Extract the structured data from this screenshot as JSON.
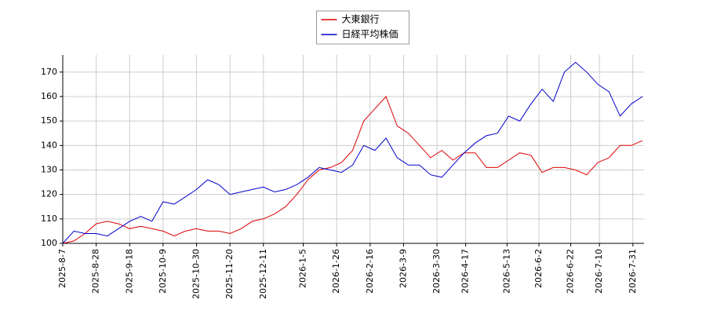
{
  "chart_data": {
    "type": "line",
    "x": [
      "2025-8-7",
      "2025-8-14",
      "2025-8-21",
      "2025-8-28",
      "2025-9-4",
      "2025-9-11",
      "2025-9-18",
      "2025-9-25",
      "2025-10-2",
      "2025-10-9",
      "2025-10-16",
      "2025-10-23",
      "2025-10-30",
      "2025-11-6",
      "2025-11-13",
      "2025-11-20",
      "2025-11-27",
      "2025-12-4",
      "2025-12-11",
      "2025-12-18",
      "2025-12-25",
      "2026-1-1",
      "2026-1-8",
      "2026-1-15",
      "2026-1-22",
      "2026-1-29",
      "2026-2-5",
      "2026-2-12",
      "2026-2-19",
      "2026-2-26",
      "2026-3-5",
      "2026-3-12",
      "2026-3-19",
      "2026-3-26",
      "2026-4-2",
      "2026-4-9",
      "2026-4-16",
      "2026-4-23",
      "2026-4-30",
      "2026-5-7",
      "2026-5-14",
      "2026-5-21",
      "2026-5-28",
      "2026-6-4",
      "2026-6-11",
      "2026-6-18",
      "2026-6-25",
      "2026-7-2",
      "2026-7-9",
      "2026-7-16",
      "2026-7-23",
      "2026-7-30",
      "2026-8-6"
    ],
    "series": [
      {
        "name": "大東銀行",
        "color": "#dd0000",
        "values": [
          100,
          101,
          104,
          108,
          109,
          108,
          106,
          107,
          106,
          105,
          103,
          105,
          106,
          105,
          105,
          104,
          106,
          109,
          110,
          112,
          115,
          120,
          126,
          130,
          131,
          133,
          138,
          150,
          155,
          160,
          148,
          145,
          140,
          135,
          138,
          134,
          137,
          137,
          131,
          131,
          134,
          137,
          136,
          129,
          131,
          131,
          130,
          128,
          133,
          135,
          140,
          140,
          142
        ]
      },
      {
        "name": "日経平均株価",
        "color": "#0000cc",
        "values": [
          100,
          105,
          104,
          104,
          103,
          106,
          109,
          111,
          109,
          117,
          116,
          119,
          122,
          126,
          124,
          120,
          121,
          122,
          123,
          121,
          122,
          124,
          127,
          131,
          130,
          129,
          132,
          140,
          138,
          143,
          135,
          132,
          132,
          128,
          127,
          132,
          137,
          141,
          144,
          145,
          152,
          150,
          157,
          163,
          158,
          170,
          174,
          170,
          165,
          162,
          152,
          157,
          160
        ]
      }
    ],
    "xlim": [
      "2025-8-7",
      "2026-8-7"
    ],
    "xticks": [
      "2025-8-7",
      "2025-8-28",
      "2025-9-18",
      "2025-10-9",
      "2025-10-30",
      "2025-11-20",
      "2025-12-11",
      "2026-1-5",
      "2026-1-26",
      "2026-2-16",
      "2026-3-9",
      "2026-3-30",
      "2026-4-17",
      "2026-5-13",
      "2026-6-2",
      "2026-6-22",
      "2026-7-10",
      "2026-7-31"
    ],
    "ylim": [
      100,
      177
    ],
    "yticks": [
      100,
      110,
      120,
      130,
      140,
      150,
      160,
      170
    ],
    "grid": true,
    "legend": "top"
  }
}
